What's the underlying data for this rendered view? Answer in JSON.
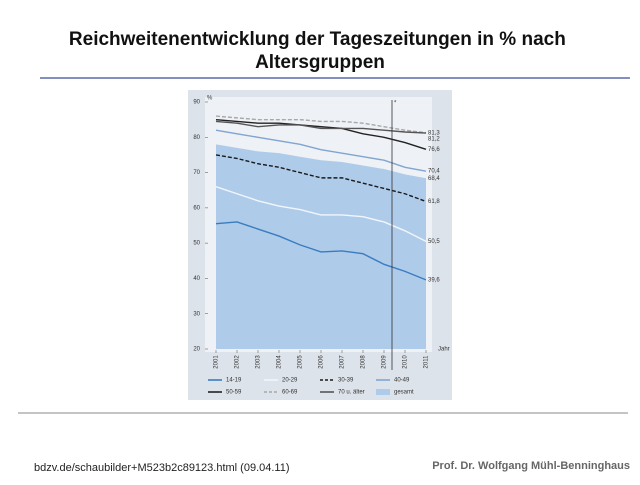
{
  "title": "Reichweitenentwicklung der Tageszeitungen in % nach Altersgruppen",
  "footer": {
    "source": "bdzv.de/schaubilder+M523b2c89123.html (09.04.11)",
    "author": "Prof. Dr. Wolfgang Mühl-Benninghaus"
  },
  "chart_data": {
    "type": "line",
    "y_label": "%",
    "x_label": "Jahr",
    "categories": [
      "2001",
      "2002",
      "2003",
      "2004",
      "2005",
      "2006",
      "2007",
      "2008",
      "2009",
      "2010",
      "2011"
    ],
    "ylim": [
      20,
      90
    ],
    "yticks": [
      20,
      30,
      40,
      50,
      60,
      70,
      80,
      90
    ],
    "series": [
      {
        "name": "gesamt",
        "color": "#aecbea",
        "area": true,
        "values": [
          78,
          77,
          76,
          75.5,
          74.5,
          73.5,
          73,
          72,
          71,
          69.5,
          68.4
        ],
        "value_labels": [
          null,
          null,
          null,
          null,
          null,
          null,
          null,
          null,
          null,
          null,
          "68,4"
        ]
      },
      {
        "name": "14-19",
        "color": "#3a7cc0",
        "values": [
          55.5,
          56,
          54,
          52,
          49.5,
          47.5,
          47.8,
          47,
          44,
          42,
          39.6
        ],
        "value_labels": [
          null,
          null,
          null,
          null,
          null,
          null,
          null,
          null,
          null,
          null,
          "39,6"
        ]
      },
      {
        "name": "20-29",
        "color": "#f2f6fb",
        "values": [
          66,
          64,
          62,
          60.5,
          59.5,
          58,
          58,
          57.5,
          56,
          53.5,
          50.5
        ],
        "value_labels": [
          null,
          null,
          null,
          null,
          null,
          null,
          null,
          null,
          null,
          null,
          "50,5"
        ]
      },
      {
        "name": "30-39",
        "color": "#1a1a1a",
        "dashed": true,
        "values": [
          75,
          74,
          72.5,
          71.5,
          70,
          68.5,
          68.5,
          67,
          65.5,
          64,
          61.8
        ],
        "value_labels": [
          null,
          null,
          null,
          null,
          null,
          null,
          null,
          null,
          null,
          null,
          "61,8"
        ]
      },
      {
        "name": "40-49",
        "color": "#7fa5d0",
        "values": [
          82,
          81,
          80,
          79,
          78,
          76.5,
          75.5,
          74.5,
          73.5,
          71.5,
          70.4
        ],
        "value_labels": [
          null,
          null,
          null,
          null,
          null,
          null,
          null,
          null,
          null,
          null,
          "70,4"
        ]
      },
      {
        "name": "50-59",
        "color": "#222222",
        "values": [
          85,
          84.5,
          84,
          84,
          83.5,
          83,
          82.5,
          81,
          80,
          78.5,
          76.6
        ],
        "value_labels": [
          null,
          null,
          null,
          null,
          null,
          null,
          null,
          null,
          null,
          null,
          "76,6"
        ]
      },
      {
        "name": "60-69",
        "color": "#a8a8a8",
        "dashed": true,
        "values": [
          86,
          85.5,
          85,
          85,
          85,
          84.5,
          84.5,
          84,
          83,
          82,
          81.3
        ],
        "value_labels": [
          null,
          null,
          null,
          null,
          null,
          null,
          null,
          null,
          null,
          null,
          "81,3"
        ]
      },
      {
        "name": "70 u. älter",
        "color": "#555555",
        "values": [
          84.5,
          84,
          83,
          83.5,
          83.5,
          82.5,
          82.5,
          82.5,
          82,
          81.5,
          81.2
        ],
        "value_labels": [
          null,
          null,
          null,
          null,
          null,
          null,
          null,
          null,
          null,
          null,
          "81,2"
        ]
      }
    ]
  }
}
